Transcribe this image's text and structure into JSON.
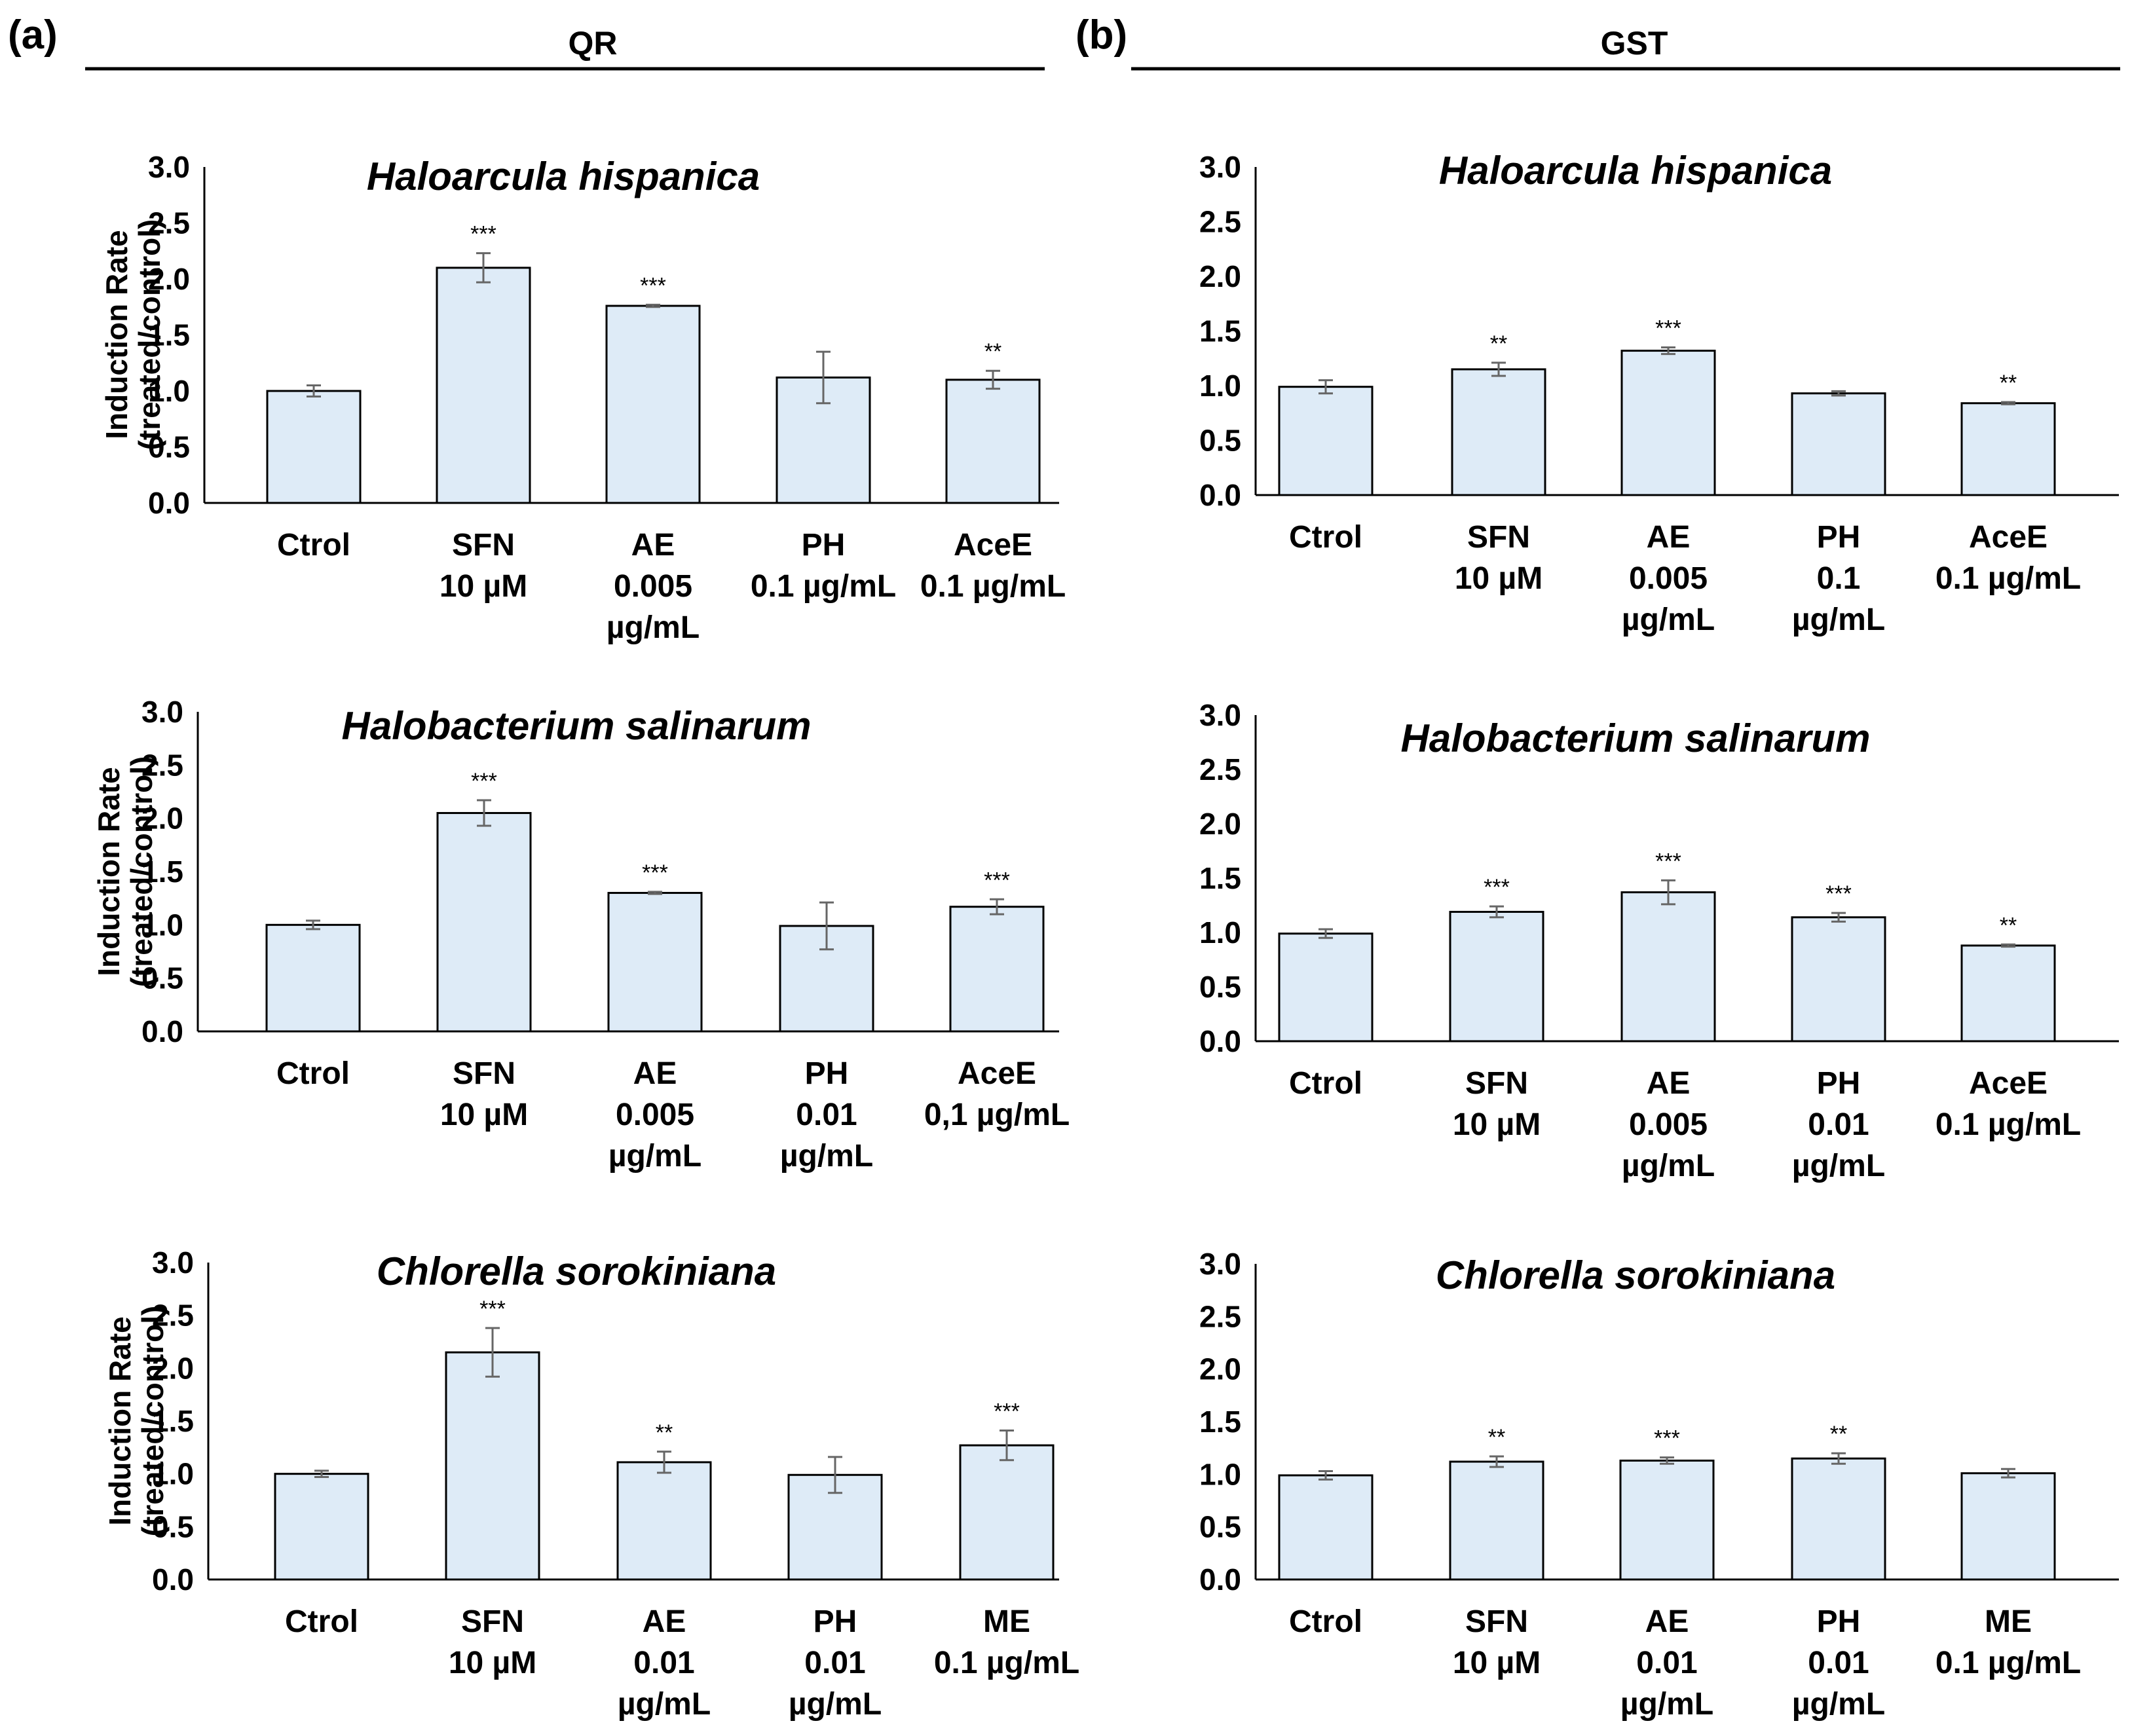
{
  "figure": {
    "panel_a": {
      "letter": "(a)",
      "label": "QR"
    },
    "panel_b": {
      "letter": "(b)",
      "label": "GST"
    }
  },
  "chart_data": [
    {
      "type": "bar",
      "panel": "a",
      "title": "Haloarcula hispanica",
      "ylabel": [
        "Induction Rate",
        "(treated/control)"
      ],
      "ylim": [
        0,
        3
      ],
      "yticks": [
        "0.0",
        "0.5",
        "1.0",
        "1.5",
        "2.0",
        "2.5",
        "3.0"
      ],
      "categories": [
        [
          "Ctrol"
        ],
        [
          "SFN",
          "10 µM"
        ],
        [
          "AE",
          "0.005",
          "µg/mL"
        ],
        [
          "PH",
          "0.1 µg/mL"
        ],
        [
          "AceE",
          "0.1 µg/mL"
        ]
      ],
      "values": [
        1.0,
        2.1,
        1.76,
        1.12,
        1.1
      ],
      "errors": [
        0.05,
        0.13,
        0.01,
        0.23,
        0.08
      ],
      "significance": [
        "",
        "***",
        "***",
        "",
        "**"
      ]
    },
    {
      "type": "bar",
      "panel": "a",
      "title": "Halobacterium salinarum",
      "ylabel": [
        "Induction Rate",
        "(treated/control)"
      ],
      "ylim": [
        0,
        3
      ],
      "yticks": [
        "0.0",
        "0.5",
        "1.0",
        "1.5",
        "2.0",
        "2.5",
        "3.0"
      ],
      "categories": [
        [
          "Ctrol"
        ],
        [
          "SFN",
          "10 µM"
        ],
        [
          "AE",
          "0.005",
          "µg/mL"
        ],
        [
          "PH",
          "0.01",
          "µg/mL"
        ],
        [
          "AceE",
          "0,1 µg/mL"
        ]
      ],
      "values": [
        1.0,
        2.05,
        1.3,
        0.99,
        1.17
      ],
      "errors": [
        0.04,
        0.12,
        0.01,
        0.22,
        0.07
      ],
      "significance": [
        "",
        "***",
        "***",
        "",
        "***"
      ]
    },
    {
      "type": "bar",
      "panel": "a",
      "title": "Chlorella sorokiniana",
      "ylabel": [
        "Induction Rate",
        "(treated/control)"
      ],
      "ylim": [
        0,
        3
      ],
      "yticks": [
        "0.0",
        "0.5",
        "1.0",
        "1.5",
        "2.0",
        "2.5",
        "3.0"
      ],
      "categories": [
        [
          "Ctrol"
        ],
        [
          "SFN",
          "10 µM"
        ],
        [
          "AE",
          "0.01",
          "µg/mL"
        ],
        [
          "PH",
          "0.01",
          "µg/mL"
        ],
        [
          "ME",
          "0.1 µg/mL"
        ]
      ],
      "values": [
        1.0,
        2.15,
        1.11,
        0.99,
        1.27
      ],
      "errors": [
        0.03,
        0.23,
        0.1,
        0.17,
        0.14
      ],
      "significance": [
        "",
        "***",
        "**",
        "",
        "***"
      ]
    },
    {
      "type": "bar",
      "panel": "b",
      "title": "Haloarcula hispanica",
      "ylabel": null,
      "ylim": [
        0,
        3
      ],
      "yticks": [
        "0.0",
        "0.5",
        "1.0",
        "1.5",
        "2.0",
        "2.5",
        "3.0"
      ],
      "categories": [
        [
          "Ctrol"
        ],
        [
          "SFN",
          "10 µM"
        ],
        [
          "AE",
          "0.005",
          "µg/mL"
        ],
        [
          "PH",
          "0.1",
          "µg/mL"
        ],
        [
          "AceE",
          "0.1 µg/mL"
        ]
      ],
      "values": [
        0.99,
        1.15,
        1.32,
        0.93,
        0.84
      ],
      "errors": [
        0.06,
        0.06,
        0.03,
        0.02,
        0.01
      ],
      "significance": [
        "",
        "**",
        "***",
        "",
        "**"
      ]
    },
    {
      "type": "bar",
      "panel": "b",
      "title": "Halobacterium salinarum",
      "ylabel": null,
      "ylim": [
        0,
        3
      ],
      "yticks": [
        "0.0",
        "0.5",
        "1.0",
        "1.5",
        "2.0",
        "2.5",
        "3.0"
      ],
      "categories": [
        [
          "Ctrol"
        ],
        [
          "SFN",
          "10 µM"
        ],
        [
          "AE",
          "0.005",
          "µg/mL"
        ],
        [
          "PH",
          "0.01",
          "µg/mL"
        ],
        [
          "AceE",
          "0.1 µg/mL"
        ]
      ],
      "values": [
        0.99,
        1.19,
        1.37,
        1.14,
        0.88
      ],
      "errors": [
        0.04,
        0.05,
        0.11,
        0.04,
        0.01
      ],
      "significance": [
        "",
        "***",
        "***",
        "***",
        "**"
      ]
    },
    {
      "type": "bar",
      "panel": "b",
      "title": "Chlorella sorokiniana",
      "ylabel": null,
      "ylim": [
        0,
        3
      ],
      "yticks": [
        "0.0",
        "0.5",
        "1.0",
        "1.5",
        "2.0",
        "2.5",
        "3.0"
      ],
      "categories": [
        [
          "Ctrol"
        ],
        [
          "SFN",
          "10 µM"
        ],
        [
          "AE",
          "0.01",
          "µg/mL"
        ],
        [
          "PH",
          "0.01",
          "µg/mL"
        ],
        [
          "ME",
          "0.1 µg/mL"
        ]
      ],
      "values": [
        0.99,
        1.12,
        1.13,
        1.15,
        1.01
      ],
      "errors": [
        0.04,
        0.05,
        0.03,
        0.05,
        0.04
      ],
      "significance": [
        "",
        "**",
        "***",
        "**",
        ""
      ]
    }
  ]
}
